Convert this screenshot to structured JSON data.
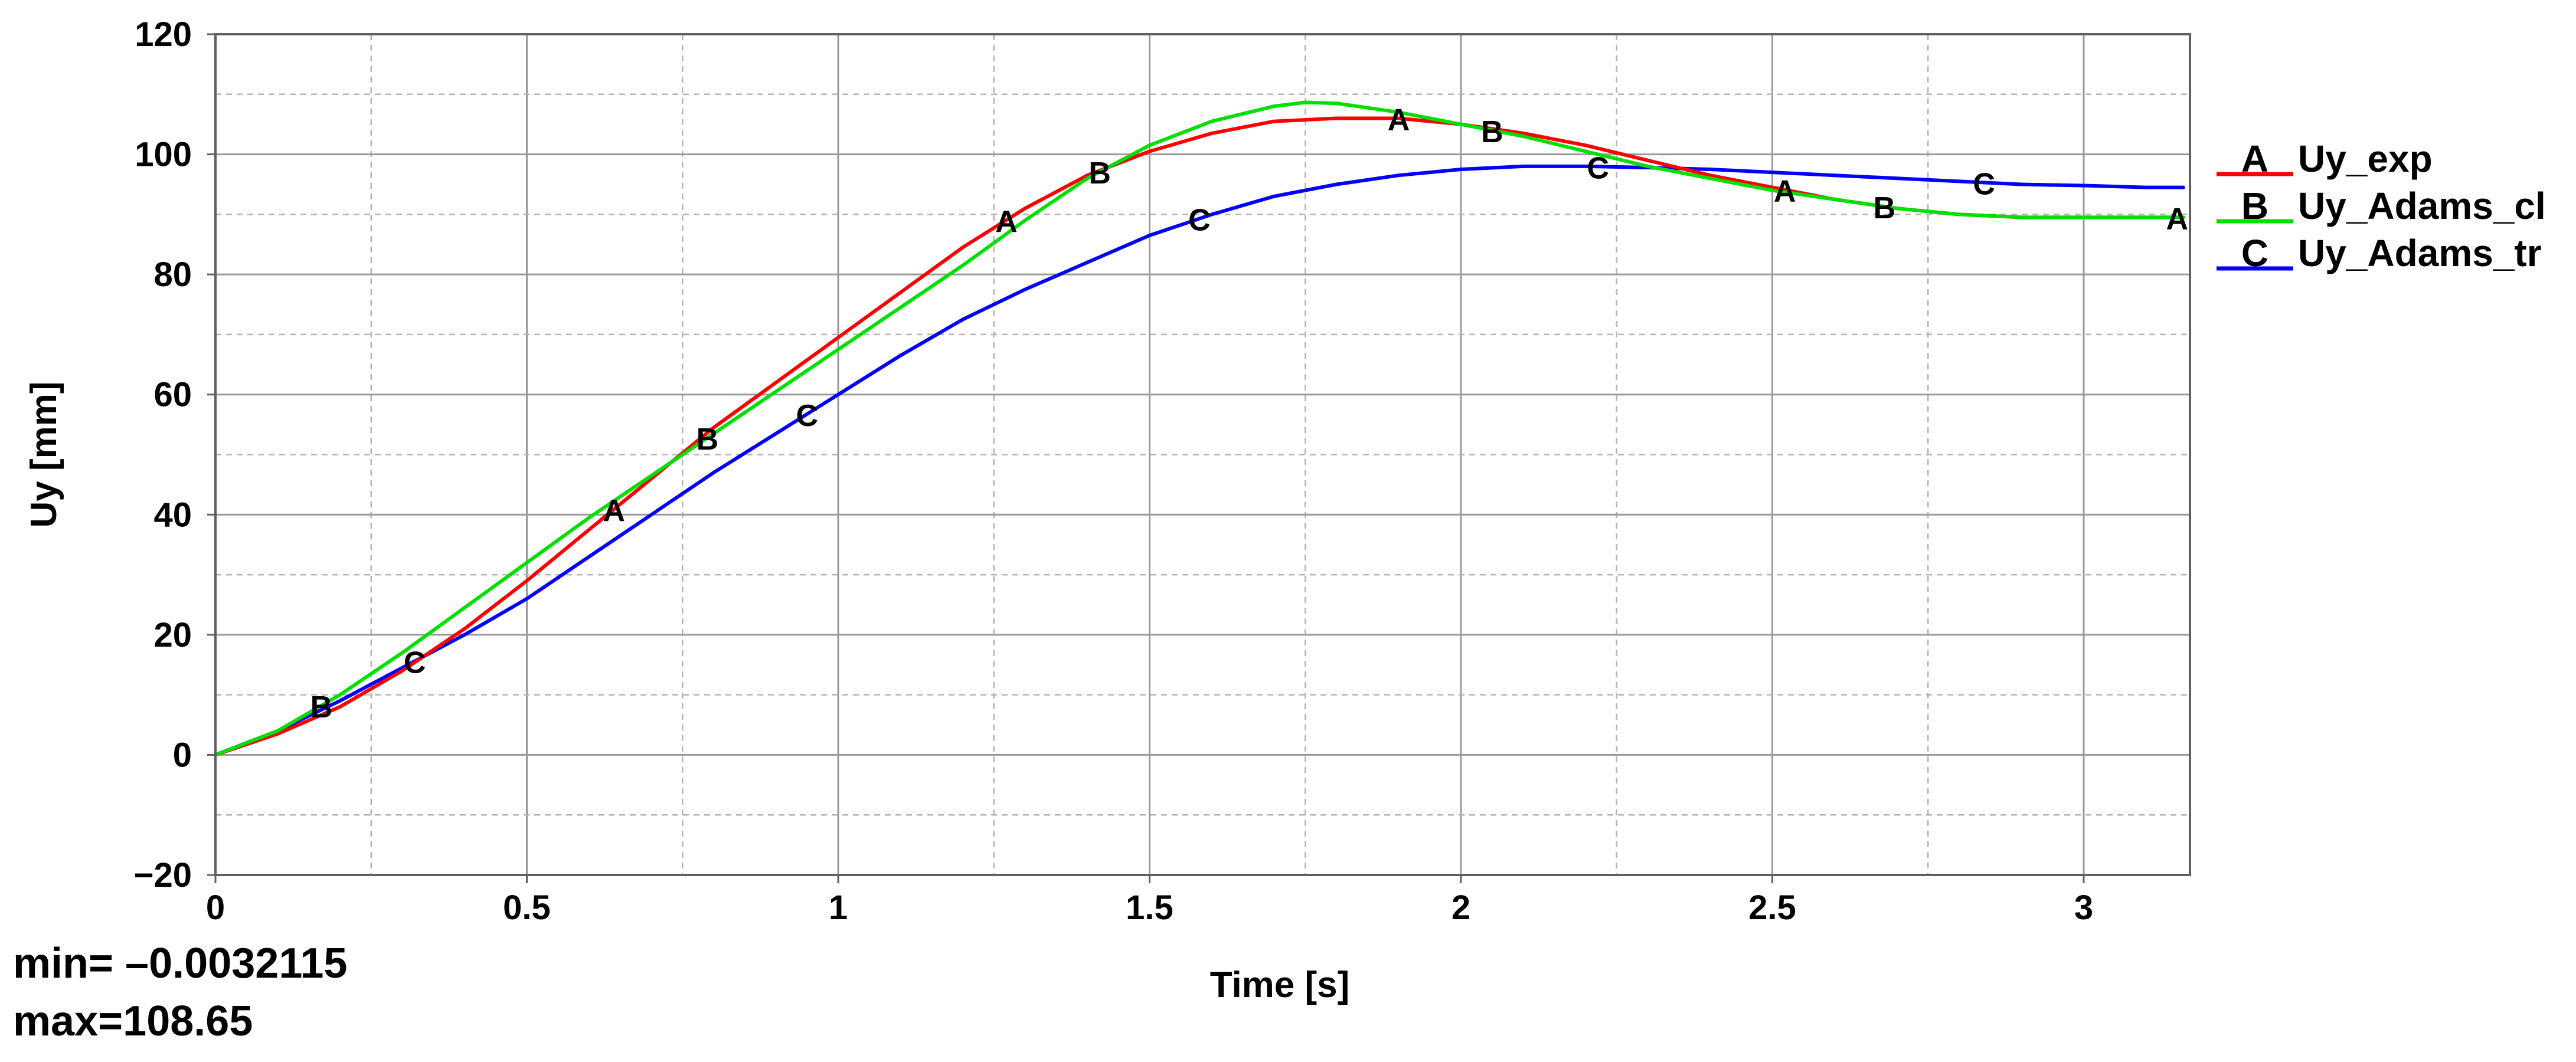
{
  "chart_data": {
    "type": "line",
    "xlabel": "Time [s]",
    "ylabel": "Uy [mm]",
    "xlim": [
      0,
      3.16
    ],
    "ylim": [
      -20,
      120
    ],
    "x_ticks": [
      0,
      0.5,
      1,
      1.5,
      2,
      2.5,
      3
    ],
    "x_tick_labels": [
      "0",
      "0.5",
      "1",
      "1.5",
      "2",
      "2.5",
      "3"
    ],
    "y_ticks": [
      -20,
      0,
      20,
      40,
      60,
      80,
      100,
      120
    ],
    "y_tick_labels": [
      "−20",
      "0",
      "20",
      "40",
      "60",
      "80",
      "100",
      "120"
    ],
    "grid": true,
    "legend_position": "right",
    "series": [
      {
        "name": "Uy_exp",
        "marker": "A",
        "color": "#ff0000",
        "x": [
          0,
          0.1,
          0.2,
          0.3,
          0.4,
          0.5,
          0.6,
          0.7,
          0.8,
          0.9,
          1.0,
          1.1,
          1.2,
          1.3,
          1.4,
          1.5,
          1.6,
          1.7,
          1.8,
          1.9,
          2.0,
          2.1,
          2.2,
          2.3,
          2.4,
          2.5,
          2.6,
          2.7,
          2.8,
          2.9,
          3.0,
          3.1,
          3.16
        ],
        "y": [
          0,
          3.5,
          8,
          14,
          21,
          29,
          37.5,
          46,
          54.5,
          62,
          69.5,
          77,
          84.5,
          91,
          96.5,
          100.5,
          103.5,
          105.5,
          106,
          106,
          105,
          103.5,
          101.5,
          99,
          96.5,
          94.5,
          92.5,
          91,
          90,
          89.5,
          89.5,
          89.5,
          89.5
        ],
        "marker_x": [
          0.64,
          1.27,
          1.9,
          2.52,
          3.15
        ]
      },
      {
        "name": "Uy_Adams_cl",
        "marker": "B",
        "color": "#00e000",
        "x": [
          0,
          0.1,
          0.2,
          0.3,
          0.4,
          0.5,
          0.6,
          0.7,
          0.8,
          0.9,
          1.0,
          1.1,
          1.2,
          1.3,
          1.4,
          1.5,
          1.6,
          1.7,
          1.75,
          1.8,
          1.9,
          2.0,
          2.1,
          2.2,
          2.3,
          2.4,
          2.5,
          2.6,
          2.7,
          2.8,
          2.9,
          3.0,
          3.1,
          3.16
        ],
        "y": [
          0,
          4,
          10,
          17,
          24.5,
          32,
          39.5,
          46.5,
          53.5,
          60.5,
          67.5,
          74.5,
          81.5,
          89,
          96,
          101.5,
          105.5,
          108,
          108.65,
          108.5,
          107,
          105,
          103,
          100.5,
          98,
          96,
          94,
          92.5,
          91,
          90,
          89.5,
          89.5,
          89.5,
          89.5
        ],
        "marker_x": [
          0.17,
          0.79,
          1.42,
          2.05,
          2.68
        ]
      },
      {
        "name": "Uy_Adams_tr",
        "marker": "C",
        "color": "#0000ff",
        "x": [
          0,
          0.1,
          0.2,
          0.3,
          0.4,
          0.5,
          0.6,
          0.7,
          0.8,
          0.9,
          1.0,
          1.1,
          1.2,
          1.3,
          1.4,
          1.5,
          1.6,
          1.7,
          1.8,
          1.9,
          2.0,
          2.1,
          2.2,
          2.3,
          2.4,
          2.5,
          2.6,
          2.7,
          2.8,
          2.9,
          3.0,
          3.1,
          3.16
        ],
        "y": [
          0,
          4,
          9,
          14.5,
          20,
          26,
          33,
          40,
          47,
          53.5,
          60,
          66.5,
          72.5,
          77.5,
          82,
          86.5,
          90,
          93,
          95,
          96.5,
          97.5,
          98,
          98,
          97.8,
          97.5,
          97,
          96.5,
          96,
          95.5,
          95,
          94.8,
          94.5,
          94.5
        ],
        "marker_x": [
          0.32,
          0.95,
          1.58,
          2.22,
          2.84
        ]
      }
    ]
  },
  "stats": {
    "min": "min= –0.0032115",
    "max": "max=108.65"
  }
}
